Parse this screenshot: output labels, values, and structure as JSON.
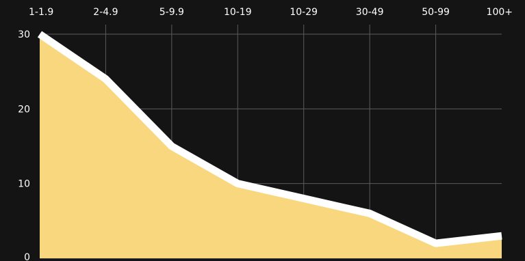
{
  "chart_data": {
    "type": "area",
    "categories": [
      "1-1.9",
      "2-4.9",
      "5-9.9",
      "10-19",
      "10-29",
      "30-49",
      "50-99",
      "100+"
    ],
    "series": [
      {
        "values": [
          30,
          24,
          15,
          10,
          8,
          6,
          2,
          3
        ]
      }
    ],
    "title": "",
    "xlabel": "",
    "ylabel": "",
    "ylim": [
      0,
      30
    ],
    "yticks": [
      "0",
      "10",
      "20",
      "30"
    ],
    "x_axis_position": "top",
    "grid": true,
    "legend": "none",
    "colors": {
      "background": "#151414",
      "area_fill": "#f9d77e",
      "line": "#ffffff",
      "grid": "#5b5b5b",
      "tick_text": "#ffffff"
    }
  }
}
